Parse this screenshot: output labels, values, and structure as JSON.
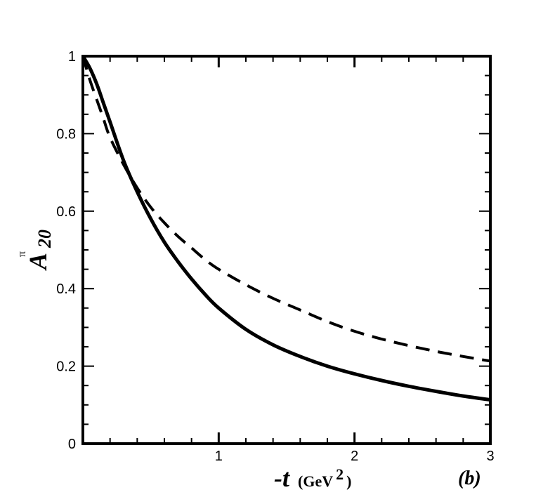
{
  "chart_data": {
    "type": "line",
    "xlabel": {
      "main": "-t",
      "unit_open": "(GeV",
      "unit_sup": "2",
      "unit_close": ")"
    },
    "ylabel": {
      "base": "A",
      "sub": "20",
      "sup": "π"
    },
    "panel_label": "(b)",
    "xlim": [
      0,
      3
    ],
    "ylim": [
      0,
      1
    ],
    "x_ticks": [
      {
        "value": 1,
        "label": "1"
      },
      {
        "value": 2,
        "label": "2"
      },
      {
        "value": 3,
        "label": "3"
      }
    ],
    "y_ticks": [
      {
        "value": 0,
        "label": "0"
      },
      {
        "value": 0.2,
        "label": "0.2"
      },
      {
        "value": 0.4,
        "label": "0.4"
      },
      {
        "value": 0.6,
        "label": "0.6"
      },
      {
        "value": 0.8,
        "label": "0.8"
      },
      {
        "value": 1,
        "label": "1"
      }
    ],
    "grid": false,
    "series": [
      {
        "style": "solid",
        "x": [
          0,
          0.05,
          0.1,
          0.15,
          0.2,
          0.3,
          0.4,
          0.5,
          0.6,
          0.7,
          0.8,
          0.9,
          1.0,
          1.2,
          1.4,
          1.6,
          1.8,
          2.0,
          2.2,
          2.4,
          2.6,
          2.8,
          3.0
        ],
        "y": [
          1.0,
          0.97,
          0.93,
          0.88,
          0.83,
          0.73,
          0.65,
          0.58,
          0.52,
          0.47,
          0.425,
          0.385,
          0.35,
          0.295,
          0.255,
          0.225,
          0.2,
          0.18,
          0.163,
          0.148,
          0.135,
          0.123,
          0.113
        ]
      },
      {
        "style": "dashed",
        "x": [
          0,
          0.05,
          0.1,
          0.15,
          0.2,
          0.3,
          0.4,
          0.5,
          0.6,
          0.7,
          0.8,
          0.9,
          1.0,
          1.2,
          1.4,
          1.6,
          1.8,
          2.0,
          2.2,
          2.4,
          2.6,
          2.8,
          3.0
        ],
        "y": [
          1.0,
          0.94,
          0.89,
          0.84,
          0.79,
          0.72,
          0.66,
          0.61,
          0.57,
          0.535,
          0.505,
          0.475,
          0.45,
          0.41,
          0.375,
          0.345,
          0.315,
          0.29,
          0.27,
          0.253,
          0.238,
          0.225,
          0.213
        ]
      }
    ]
  }
}
